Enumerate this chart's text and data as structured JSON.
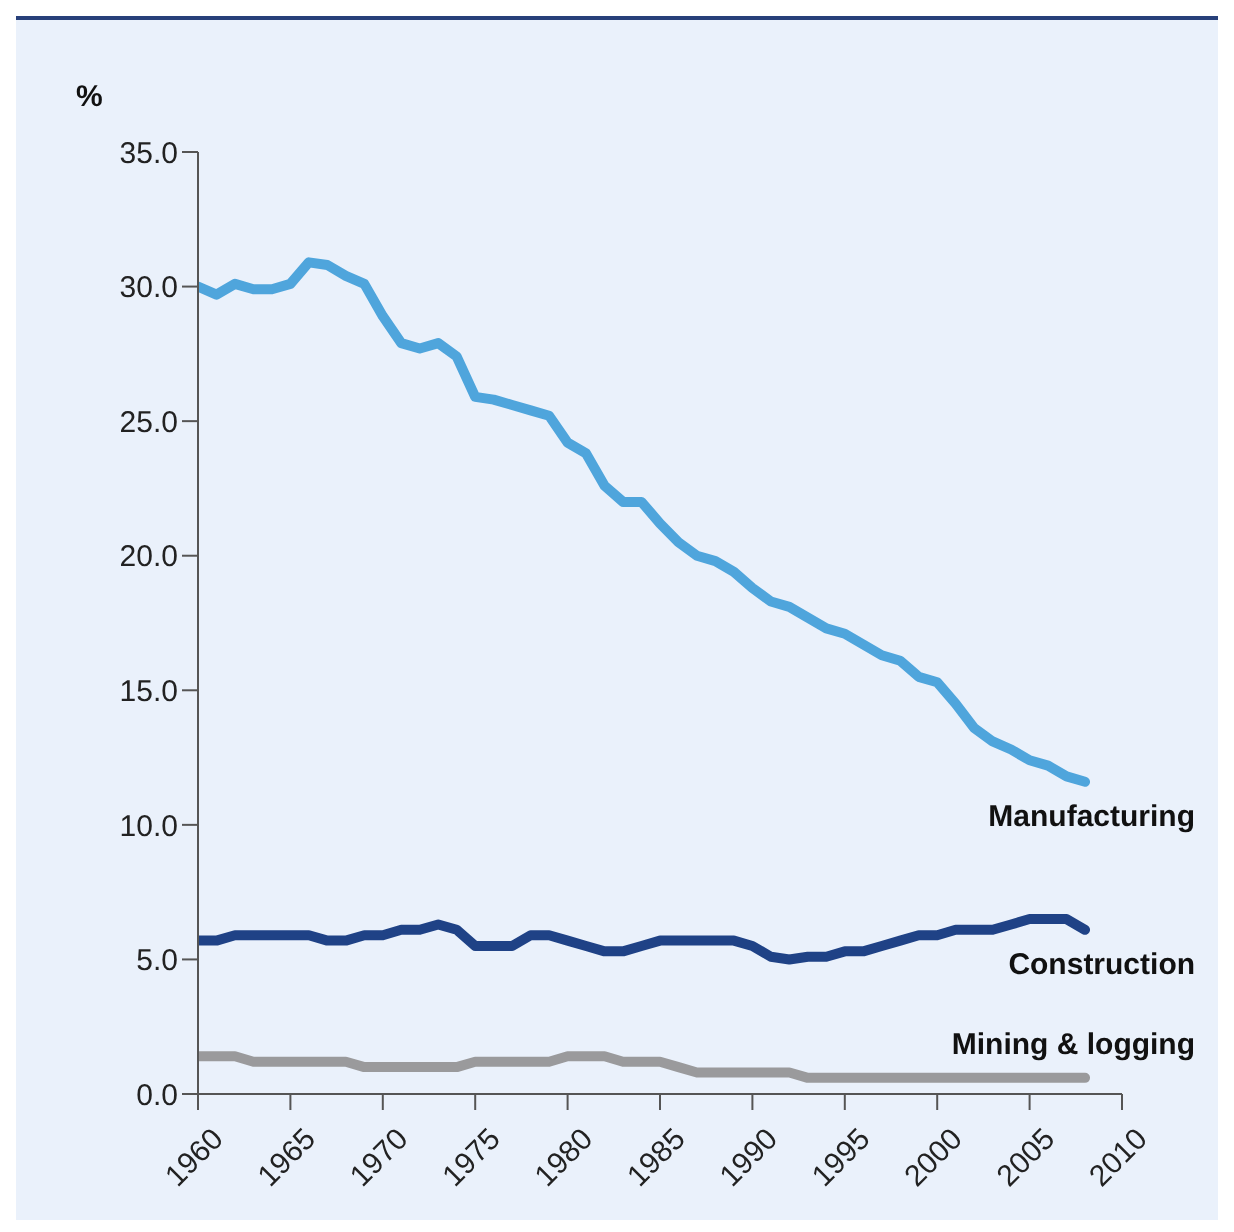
{
  "chart_data": {
    "type": "line",
    "ylabel": "%",
    "x": [
      1960,
      1961,
      1962,
      1963,
      1964,
      1965,
      1966,
      1967,
      1968,
      1969,
      1970,
      1971,
      1972,
      1973,
      1974,
      1975,
      1976,
      1977,
      1978,
      1979,
      1980,
      1981,
      1982,
      1983,
      1984,
      1985,
      1986,
      1987,
      1988,
      1989,
      1990,
      1991,
      1992,
      1993,
      1994,
      1995,
      1996,
      1997,
      1998,
      1999,
      2000,
      2001,
      2002,
      2003,
      2004,
      2005,
      2006,
      2007,
      2008
    ],
    "series": [
      {
        "name": "Manufacturing",
        "color": "#4fa5dc",
        "values": [
          30.0,
          29.7,
          30.1,
          29.9,
          29.9,
          30.1,
          30.9,
          30.8,
          30.4,
          30.1,
          28.9,
          27.9,
          27.7,
          27.9,
          27.4,
          25.9,
          25.8,
          25.6,
          25.4,
          25.2,
          24.2,
          23.8,
          22.6,
          22.0,
          22.0,
          21.2,
          20.5,
          20.0,
          19.8,
          19.4,
          18.8,
          18.3,
          18.1,
          17.7,
          17.3,
          17.1,
          16.7,
          16.3,
          16.1,
          15.5,
          15.3,
          14.5,
          13.6,
          13.1,
          12.8,
          12.4,
          12.2,
          11.8,
          11.6
        ]
      },
      {
        "name": "Construction",
        "color": "#1f4286",
        "values": [
          5.7,
          5.7,
          5.9,
          5.9,
          5.9,
          5.9,
          5.9,
          5.7,
          5.7,
          5.9,
          5.9,
          6.1,
          6.1,
          6.3,
          6.1,
          5.5,
          5.5,
          5.5,
          5.9,
          5.9,
          5.7,
          5.5,
          5.3,
          5.3,
          5.5,
          5.7,
          5.7,
          5.7,
          5.7,
          5.7,
          5.5,
          5.1,
          5.0,
          5.1,
          5.1,
          5.3,
          5.3,
          5.5,
          5.7,
          5.9,
          5.9,
          6.1,
          6.1,
          6.1,
          6.3,
          6.5,
          6.5,
          6.5,
          6.1
        ]
      },
      {
        "name": "Mining & logging",
        "color": "#9a9a9c",
        "values": [
          1.4,
          1.4,
          1.4,
          1.2,
          1.2,
          1.2,
          1.2,
          1.2,
          1.2,
          1.0,
          1.0,
          1.0,
          1.0,
          1.0,
          1.0,
          1.2,
          1.2,
          1.2,
          1.2,
          1.2,
          1.4,
          1.4,
          1.4,
          1.2,
          1.2,
          1.2,
          1.0,
          0.8,
          0.8,
          0.8,
          0.8,
          0.8,
          0.8,
          0.6,
          0.6,
          0.6,
          0.6,
          0.6,
          0.6,
          0.6,
          0.6,
          0.6,
          0.6,
          0.6,
          0.6,
          0.6,
          0.6,
          0.6,
          0.6
        ]
      }
    ],
    "xlim": [
      1960,
      2010
    ],
    "xticks": [
      1960,
      1965,
      1970,
      1975,
      1980,
      1985,
      1990,
      1995,
      2000,
      2005,
      2010
    ],
    "ylim": [
      0,
      35
    ],
    "yticks": [
      {
        "value": 0,
        "label": "0.0"
      },
      {
        "value": 5,
        "label": "5.0"
      },
      {
        "value": 10,
        "label": "10.0"
      },
      {
        "value": 15,
        "label": "15.0"
      },
      {
        "value": 20,
        "label": "20.0"
      },
      {
        "value": 25,
        "label": "25.0"
      },
      {
        "value": 30,
        "label": "30.0"
      },
      {
        "value": 35,
        "label": "35.0"
      }
    ],
    "grid": false,
    "marker": "none",
    "line_style": "solid"
  }
}
